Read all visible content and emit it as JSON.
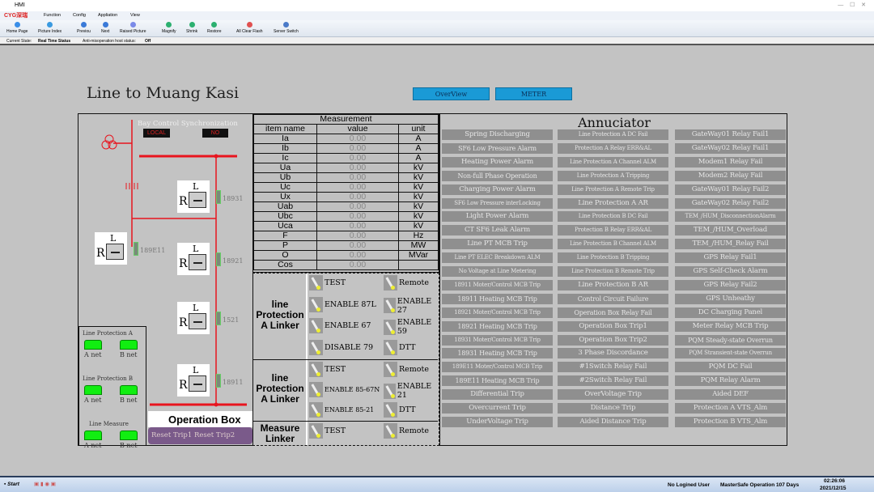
{
  "window": {
    "title": "HMI"
  },
  "menu": {
    "logo": "CYG深瑞",
    "items": [
      "Function",
      "Config",
      "Appliation",
      "View"
    ]
  },
  "toolbar": [
    "Home Page",
    "Picture Index",
    "Previou",
    "Next",
    "Raised Picture",
    "Magnify",
    "Shrink",
    "Restore",
    "All Clear Flash",
    "Server Switch"
  ],
  "status": {
    "current_label": "Current State:",
    "current_value": "Real Time Status",
    "anti_label": "Anti-misoperation host status:",
    "anti_value": "Off"
  },
  "page": {
    "title": "Line to Muang Kasi",
    "overview": "OverView",
    "meter": "METER"
  },
  "diagram": {
    "sync_label": "Bay Control Synchronization",
    "local": "LOCAL",
    "no": "NO",
    "switches": [
      "18931",
      "189E11",
      "18921",
      "1521",
      "18911"
    ],
    "net_groups": [
      {
        "title": "Line Protection A",
        "a": "A net",
        "b": "B net"
      },
      {
        "title": "Line Protection B",
        "a": "A net",
        "b": "B net"
      },
      {
        "title": "Line Measure",
        "a": "A net",
        "b": "B net"
      }
    ],
    "op_box": "Operation Box",
    "reset1": "Reset Trip1",
    "reset2": "Reset Trip2"
  },
  "measurement": {
    "title": "Measurement",
    "headers": [
      "item name",
      "value",
      "unit"
    ],
    "rows": [
      [
        "Ia",
        "0.00",
        "A"
      ],
      [
        "Ib",
        "0.00",
        "A"
      ],
      [
        "Ic",
        "0.00",
        "A"
      ],
      [
        "Ua",
        "0.00",
        "kV"
      ],
      [
        "Ub",
        "0.00",
        "kV"
      ],
      [
        "Uc",
        "0.00",
        "kV"
      ],
      [
        "Ux",
        "0.00",
        "kV"
      ],
      [
        "Uab",
        "0.00",
        "kV"
      ],
      [
        "Ubc",
        "0.00",
        "kV"
      ],
      [
        "Uca",
        "0.00",
        "kV"
      ],
      [
        "F",
        "0.00",
        "Hz"
      ],
      [
        "P",
        "0.00",
        "MW"
      ],
      [
        "O",
        "0.00",
        "MVar"
      ],
      [
        "Cos",
        "0.00",
        ""
      ]
    ]
  },
  "linkers": [
    {
      "label": "line Protection A Linker",
      "items": [
        "TEST",
        "Remote",
        "ENABLE 87L",
        "ENABLE 27",
        "ENABLE 67",
        "ENABLE 59",
        "DISABLE 79",
        "DTT"
      ]
    },
    {
      "label": "line Protection A Linker",
      "items": [
        "TEST",
        "Remote",
        "ENABLE 85-67N",
        "ENABLE 21",
        "ENABLE 85-21",
        "DTT"
      ]
    },
    {
      "label": "Measure Linker",
      "items": [
        "TEST",
        "Remote"
      ]
    }
  ],
  "annunciator": {
    "title": "Annuciator",
    "columns": [
      [
        "Spring Discharging",
        "SF6 Low Pressure Alarm",
        "Heating Power Alarm",
        "Non-full Phase Operation",
        "Charging Power Alarm",
        "SF6 Low Pressure interLocking",
        "Light Power Alarm",
        "CT SF6 Leak Alarm",
        "Line PT MCB Trip",
        "Line PT ELEC Breakdown ALM",
        "No Voltage at Line Metering",
        "18911 Moter/Control MCB Trip",
        "18911 Heating MCB Trip",
        "18921 Moter/Control MCB Trip",
        "18921 Heating MCB Trip",
        "18931 Moter/Control MCB Trip",
        "18931 Heating MCB Trip",
        "189E11 Moter/Control MCB Trip",
        "189E11 Heating MCB Trip",
        "Differential Trip",
        "Overcurrent Trip",
        "UnderVoltage Trip"
      ],
      [
        "Line Protection A DC Fail",
        "Protection A Relay ERR&AL",
        "Line Protection A Channel ALM",
        "Line Protection A Tripping",
        "Line Protection A Remote Trip",
        "Line Protection A AR",
        "Line Protection B DC Fail",
        "Protection B Relay ERR&AL",
        "Line Protection B Channel ALM",
        "Line Protection B Tripping",
        "Line Protection B Remote Trip",
        "Line Protection B AR",
        "Control Circuit Failure",
        "Operation Box Relay Fail",
        "Operation Box Trip1",
        "Operation Box Trip2",
        "3 Phase Discordance",
        "#1Switch Relay Fail",
        "#2Switch Relay Fail",
        "OverVoltage Trip",
        "Distance Trip",
        "Aided Distance Trip"
      ],
      [
        "GateWay01 Relay Fail1",
        "GateWay02 Relay Fail1",
        "Modem1 Relay Fail",
        "Modem2 Relay Fail",
        "GateWay01 Relay Fail2",
        "GateWay02 Relay Fail2",
        "TEM_/HUM_DisconnectionAlarm",
        "TEM_/HUM_Overload",
        "TEM_/HUM_Relay Fail",
        "GPS Relay Fail1",
        "GPS Self-Check Alarm",
        "GPS Relay Fail2",
        "GPS Unheathy",
        "DC Charging Panel",
        "Meter Relay MCB Trip",
        "PQM Steady-state Overrun",
        "PQM Stransient-state Overrun",
        "PQM DC Fail",
        "PQM Relay Alarm",
        "Aided DEF",
        "Protection A VTS_Alm",
        "Protection B VTS_Alm"
      ]
    ]
  },
  "taskbar": {
    "start": "Start",
    "user": "No Logined User",
    "safe": "MasterSafe Operation 107 Days",
    "time": "02:26:06",
    "date": "2021/12/15"
  },
  "colors": {
    "accent": "#1a9ad6",
    "line": "#e8141e",
    "annunciator_button": "#8f8f8f",
    "reset_button": "#7a5a8a",
    "net_ok": "#22ee22"
  }
}
